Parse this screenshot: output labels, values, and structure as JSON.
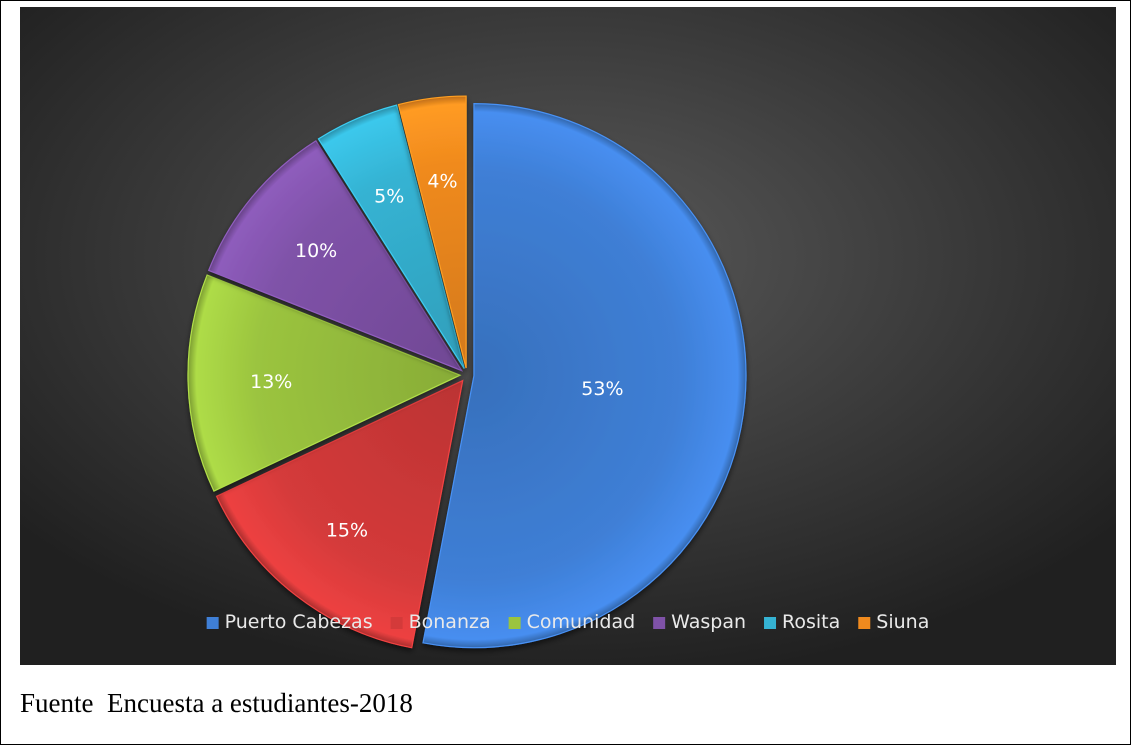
{
  "chart_data": {
    "type": "pie",
    "title": "",
    "categories": [
      "Puerto Cabezas",
      "Bonanza",
      "Comunidad",
      "Waspan",
      "Rosita",
      "Siuna"
    ],
    "values": [
      53,
      15,
      13,
      10,
      5,
      4
    ],
    "data_labels": [
      "53%",
      "15%",
      "13%",
      "10%",
      "5%",
      "4%"
    ],
    "unit": "%",
    "colors": [
      "#3f7fd6",
      "#d43a3a",
      "#9bc43f",
      "#7f52a8",
      "#35b3d3",
      "#f08a1e"
    ],
    "background": "#3a3a3a",
    "legend_position": "bottom",
    "start_angle_deg": 0,
    "direction": "clockwise",
    "exploded": true
  },
  "source_note": "Fuente  Encuesta a estudiantes-2018"
}
